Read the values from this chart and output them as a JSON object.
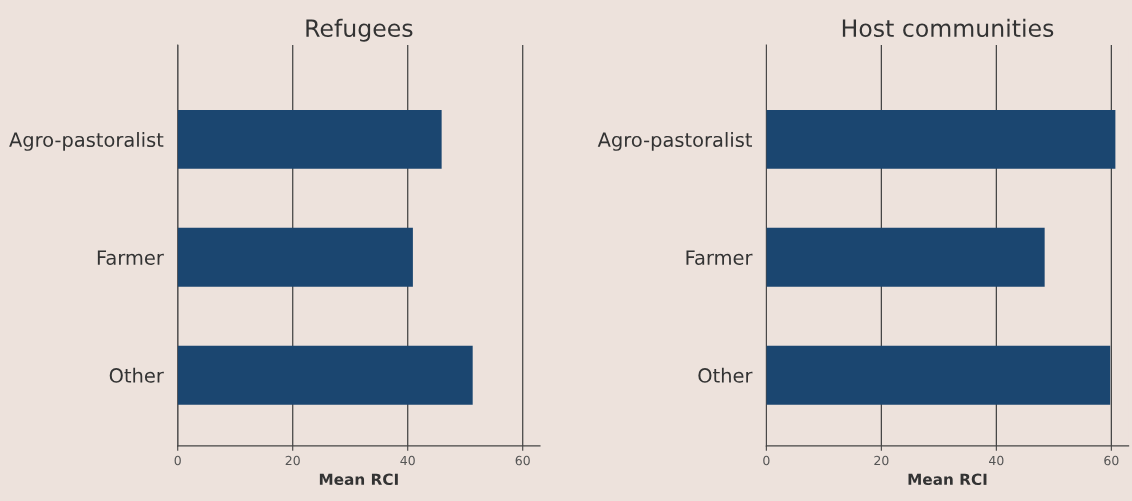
{
  "chart_data": [
    {
      "type": "bar",
      "orientation": "horizontal",
      "title": "Refugees",
      "xlabel": "Mean RCI",
      "categories": [
        "Agro-pastoralist",
        "Farmer",
        "Other"
      ],
      "values": [
        45.9,
        40.9,
        51.3
      ],
      "color": "#1b4670",
      "xlim": [
        0,
        63
      ],
      "xticks": [
        0,
        20,
        40,
        60
      ],
      "grid": "x",
      "legend": false
    },
    {
      "type": "bar",
      "orientation": "horizontal",
      "title": "Host communities",
      "xlabel": "Mean RCI",
      "categories": [
        "Agro-pastoralist",
        "Farmer",
        "Other"
      ],
      "values": [
        60.7,
        48.4,
        59.8
      ],
      "color": "#1b4670",
      "xlim": [
        0,
        63
      ],
      "xticks": [
        0,
        20,
        40,
        60
      ],
      "grid": "x",
      "legend": false
    }
  ]
}
